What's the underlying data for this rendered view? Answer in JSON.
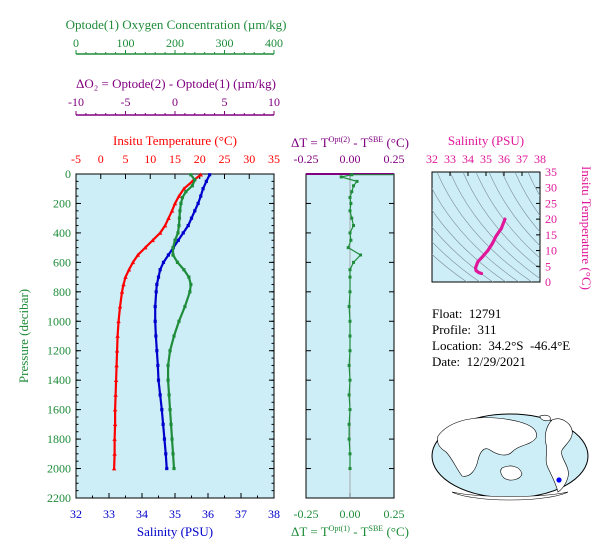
{
  "colors": {
    "oxygen": "#1e8c3a",
    "delta_o2": "#800080",
    "temperature": "#ff0000",
    "salinity": "#0000cc",
    "magenta": "#e0179a",
    "panel_bg": "#cdeef7",
    "axis_green": "#1e8c3a"
  },
  "header": {
    "oxygen_title": "Optode(1) Oxygen Concentration (µm/kg)",
    "delta_o2_title": "ΔO₂ = Optode(2) - Optode(1)   (µm/kg)"
  },
  "panels": {
    "main": {
      "temp_title": "Insitu Temperature (°C)",
      "salinity_title": "Salinity (PSU)",
      "pressure_title": "Pressure (decibar)"
    },
    "delta_t": {
      "top_title": "ΔT = T",
      "top_sup1": "Opt(2)",
      "top_mid": " - T",
      "top_sup2": "SBE",
      "top_end": " (°C)",
      "bottom_title": "ΔT = T",
      "bottom_sup1": "Opt(1)",
      "bottom_mid": " - T",
      "bottom_sup2": "SBE",
      "bottom_end": " (°C)"
    },
    "ts": {
      "salinity_title": "Salinity (PSU)",
      "temp_title": "Insitu Temperature (°C)"
    }
  },
  "info": {
    "float": "Float:  12791",
    "profile": "Profile:  311",
    "location": "Location:  34.2°S  -46.4°E",
    "date": "Date:  12/29/2021"
  },
  "chart_data": [
    {
      "type": "line",
      "panel": "main",
      "y_axis": {
        "label": "Pressure (decibar)",
        "range": [
          2200,
          0
        ],
        "ticks": [
          0,
          200,
          400,
          600,
          800,
          1000,
          1200,
          1400,
          1600,
          1800,
          2000,
          2200
        ]
      },
      "axes": {
        "temperature": {
          "label": "Insitu Temperature (°C)",
          "range": [
            -5,
            35
          ],
          "ticks": [
            -5,
            0,
            5,
            10,
            15,
            20,
            25,
            30,
            35
          ]
        },
        "salinity": {
          "label": "Salinity (PSU)",
          "range": [
            32,
            38
          ],
          "ticks": [
            32,
            33,
            34,
            35,
            36,
            37,
            38
          ]
        },
        "oxygen": {
          "label": "Optode(1) Oxygen Concentration (µm/kg)",
          "range": [
            0,
            400
          ],
          "ticks": [
            0,
            100,
            200,
            300,
            400
          ]
        },
        "delta_o2": {
          "label": "ΔO₂ = Optode(2) - Optode(1)   (µm/kg)",
          "range": [
            -10,
            10
          ],
          "ticks": [
            -10,
            -5,
            0,
            5,
            10
          ]
        }
      },
      "series": [
        {
          "axis": "temperature",
          "pressure": [
            5,
            50,
            100,
            150,
            200,
            250,
            300,
            350,
            400,
            450,
            500,
            550,
            600,
            650,
            700,
            750,
            800,
            900,
            1000,
            1100,
            1200,
            1300,
            1400,
            1500,
            1600,
            1700,
            1800,
            1900,
            2000
          ],
          "values": [
            20.2,
            18.5,
            16.8,
            15.8,
            15.0,
            14.4,
            13.7,
            13.0,
            12.0,
            10.5,
            9.0,
            7.5,
            6.5,
            5.7,
            5.0,
            4.6,
            4.3,
            3.9,
            3.6,
            3.4,
            3.3,
            3.2,
            3.1,
            3.0,
            2.9,
            2.9,
            2.8,
            2.8,
            2.7
          ]
        },
        {
          "axis": "salinity",
          "pressure": [
            5,
            50,
            100,
            150,
            200,
            250,
            300,
            350,
            400,
            450,
            500,
            550,
            600,
            650,
            700,
            750,
            800,
            900,
            1000,
            1100,
            1200,
            1300,
            1400,
            1500,
            1600,
            1700,
            1800,
            1900,
            2000
          ],
          "values": [
            36.05,
            35.95,
            35.85,
            35.78,
            35.7,
            35.6,
            35.5,
            35.4,
            35.25,
            35.1,
            34.95,
            34.8,
            34.65,
            34.55,
            34.5,
            34.45,
            34.43,
            34.4,
            34.4,
            34.42,
            34.45,
            34.48,
            34.5,
            34.55,
            34.6,
            34.64,
            34.68,
            34.72,
            34.75
          ]
        },
        {
          "axis": "oxygen",
          "pressure": [
            5,
            40,
            80,
            120,
            160,
            200,
            250,
            300,
            350,
            400,
            450,
            500,
            550,
            600,
            650,
            700,
            750,
            800,
            900,
            1000,
            1100,
            1200,
            1300,
            1400,
            1500,
            1600,
            1700,
            1800,
            1900,
            2000
          ],
          "values": [
            232,
            240,
            235,
            222,
            215,
            212,
            210,
            209,
            208,
            206,
            200,
            196,
            196,
            205,
            218,
            228,
            232,
            230,
            220,
            208,
            198,
            190,
            186,
            186,
            188,
            190,
            192,
            194,
            196,
            198
          ]
        }
      ]
    },
    {
      "type": "scatter",
      "panel": "delta_t",
      "x_axis_top": {
        "label": "ΔT = T^Opt(2) - T^SBE (°C)",
        "range": [
          -0.25,
          0.25
        ],
        "ticks": [
          -0.25,
          0,
          0.25
        ]
      },
      "x_axis_bottom": {
        "label": "ΔT = T^Opt(1) - T^SBE (°C)",
        "range": [
          -0.25,
          0.25
        ],
        "ticks": [
          -0.25,
          0,
          0.25
        ]
      },
      "y_range": [
        2200,
        0
      ],
      "series": [
        {
          "pressure": [
            5,
            20,
            50,
            80,
            120,
            160,
            200,
            250,
            300,
            350,
            400,
            450,
            500,
            550,
            600,
            650,
            700,
            800,
            900,
            1000,
            1100,
            1200,
            1300,
            1400,
            1500,
            1600,
            1700,
            1800,
            1900,
            2000
          ],
          "values": [
            0.01,
            -0.05,
            0.04,
            0.02,
            0.01,
            0.0,
            0.005,
            0.0,
            0.01,
            0.02,
            0.0,
            0.005,
            -0.01,
            0.06,
            0.02,
            0.0,
            0.0,
            0.0,
            -0.005,
            0.0,
            0.0,
            0.0,
            -0.005,
            0.0,
            -0.005,
            0.0,
            -0.005,
            -0.005,
            0.0,
            0.0
          ]
        }
      ]
    },
    {
      "type": "line",
      "panel": "ts",
      "x_axis": {
        "label": "Salinity (PSU)",
        "range": [
          32,
          38
        ],
        "ticks": [
          32,
          33,
          34,
          35,
          36,
          37,
          38
        ]
      },
      "y_axis": {
        "label": "Insitu Temperature (°C)",
        "range": [
          0,
          35
        ],
        "ticks": [
          0,
          5,
          10,
          15,
          20,
          25,
          30,
          35
        ]
      },
      "series": [
        {
          "salinity": [
            34.75,
            34.6,
            34.45,
            34.42,
            34.55,
            34.8,
            35.1,
            35.35,
            35.55,
            35.7,
            35.85,
            36.05
          ],
          "temperature": [
            2.7,
            3.0,
            3.6,
            4.5,
            6.5,
            8.0,
            10.0,
            12.2,
            14.5,
            15.8,
            17.0,
            20.0
          ]
        }
      ]
    }
  ]
}
